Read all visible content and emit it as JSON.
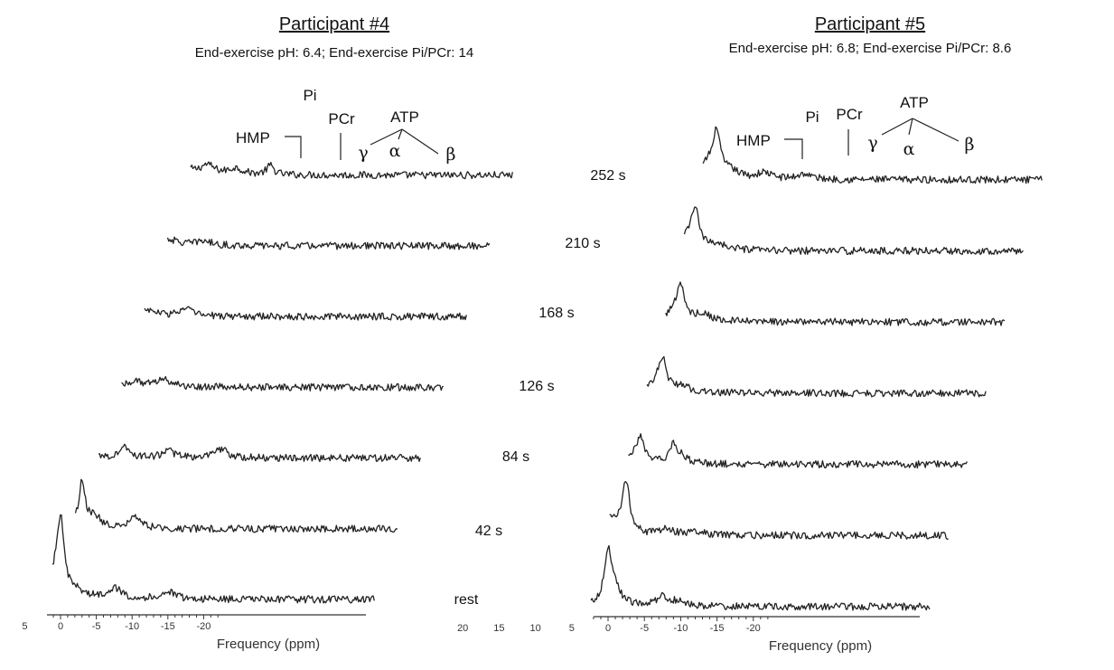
{
  "chart_data": [
    {
      "type": "line",
      "title": "Participant #4",
      "subtitle": "End-exercise pH: 6.4; End-exercise Pi/PCr: 14",
      "xlabel": "Frequency (ppm)",
      "x_ticks": [
        "20",
        "15",
        "10",
        "5",
        "0",
        "-5",
        "-10",
        "-15",
        "-20"
      ],
      "xlim": [
        21,
        -22
      ],
      "x_reversed": true,
      "peak_labels": {
        "hmp": "HMP",
        "pi": "Pi",
        "pcr": "PCr",
        "atp": "ATP",
        "gamma": "γ",
        "alpha": "α",
        "beta": "β"
      },
      "series": [
        {
          "name": "252 s",
          "peaks": [
            {
              "ppm": -14.5,
              "height": 70,
              "width": 0.5
            },
            {
              "ppm": -13.5,
              "height": 26,
              "width": 1.2
            },
            {
              "ppm": -11.5,
              "height": 7,
              "width": 1.5
            },
            {
              "ppm": -24.5,
              "height": 7,
              "width": 1.2
            },
            {
              "ppm": -17.3,
              "height": 7,
              "width": 0.6
            },
            {
              "ppm": -20.5,
              "height": 10,
              "width": 1.2
            },
            {
              "ppm": -29.3,
              "height": 10,
              "width": 0.6
            }
          ]
        },
        {
          "name": "210 s",
          "peaks": [
            {
              "ppm": -11.5,
              "height": 62,
              "width": 0.5
            },
            {
              "ppm": -10.5,
              "height": 24,
              "width": 1.2
            },
            {
              "ppm": -15.0,
              "height": 5,
              "width": 1.5
            },
            {
              "ppm": -20.0,
              "height": 5,
              "width": 1.2
            }
          ]
        },
        {
          "name": "168 s",
          "peaks": [
            {
              "ppm": -8.5,
              "height": 57,
              "width": 0.55
            },
            {
              "ppm": -7.5,
              "height": 20,
              "width": 1.2
            },
            {
              "ppm": -12.0,
              "height": 5,
              "width": 1.5
            },
            {
              "ppm": -17.5,
              "height": 8,
              "width": 1.2
            }
          ]
        },
        {
          "name": "126 s",
          "peaks": [
            {
              "ppm": -5.5,
              "height": 35,
              "width": 0.55
            },
            {
              "ppm": -4.5,
              "height": 13,
              "width": 1.2
            },
            {
              "ppm": -14.5,
              "height": 9,
              "width": 1.2
            },
            {
              "ppm": -10.5,
              "height": 6,
              "width": 1.2
            }
          ]
        },
        {
          "name": "84 s",
          "peaks": [
            {
              "ppm": -2.5,
              "height": 42,
              "width": 0.55
            },
            {
              "ppm": -1.5,
              "height": 14,
              "width": 1.2
            },
            {
              "ppm": -9.0,
              "height": 13,
              "width": 0.7
            },
            {
              "ppm": -15.0,
              "height": 8,
              "width": 1.0
            },
            {
              "ppm": -22.5,
              "height": 10,
              "width": 1.0
            }
          ]
        },
        {
          "name": "42 s",
          "peaks": [
            {
              "ppm": 2.5,
              "height": 38,
              "width": 0.55
            },
            {
              "ppm": 0.0,
              "height": 28,
              "width": 0.35
            },
            {
              "ppm": -3.0,
              "height": 50,
              "width": 0.55
            },
            {
              "ppm": -4.8,
              "height": 12,
              "width": 1.0
            },
            {
              "ppm": -10.5,
              "height": 12,
              "width": 1.0
            }
          ]
        },
        {
          "name": "rest",
          "peaks": [
            {
              "ppm": 0.0,
              "height": 80,
              "width": 0.55
            },
            {
              "ppm": 0.9,
              "height": 22,
              "width": 1.0
            },
            {
              "ppm": -2.0,
              "height": 8,
              "width": 1.5
            },
            {
              "ppm": -7.5,
              "height": 12,
              "width": 1.2
            },
            {
              "ppm": -15.0,
              "height": 8,
              "width": 1.2
            }
          ]
        }
      ]
    },
    {
      "type": "line",
      "title": "Participant #5",
      "subtitle": "End-exercise pH: 6.8; End-exercise Pi/PCr: 8.6",
      "xlabel": "Frequency (ppm)",
      "x_ticks": [
        "20",
        "15",
        "10",
        "5",
        "0",
        "-5",
        "-10",
        "-15",
        "-20"
      ],
      "xlim": [
        21,
        -22
      ],
      "x_reversed": true,
      "peak_labels": {
        "hmp": "HMP",
        "pi": "Pi",
        "pcr": "PCr",
        "atp": "ATP",
        "gamma": "γ",
        "alpha": "α",
        "beta": "β"
      },
      "series": [
        {
          "name": "252 s",
          "peaks": [
            {
              "ppm": -15.0,
              "height": 44,
              "width": 0.5
            },
            {
              "ppm": -14.0,
              "height": 20,
              "width": 1.2
            },
            {
              "ppm": -16.8,
              "height": 8,
              "width": 1.5
            },
            {
              "ppm": -21.5,
              "height": 7,
              "width": 1.2
            },
            {
              "ppm": -27.0,
              "height": 6,
              "width": 1.2
            }
          ]
        },
        {
          "name": "210 s",
          "peaks": [
            {
              "ppm": -12.0,
              "height": 38,
              "width": 0.6
            },
            {
              "ppm": -11.2,
              "height": 15,
              "width": 1.2
            },
            {
              "ppm": -15.0,
              "height": 7,
              "width": 1.5
            }
          ]
        },
        {
          "name": "168 s",
          "peaks": [
            {
              "ppm": -10.0,
              "height": 32,
              "width": 0.6
            },
            {
              "ppm": -9.2,
              "height": 12,
              "width": 1.2
            },
            {
              "ppm": -13.0,
              "height": 8,
              "width": 1.5
            }
          ]
        },
        {
          "name": "126 s",
          "peaks": [
            {
              "ppm": -7.5,
              "height": 30,
              "width": 0.6
            },
            {
              "ppm": -6.7,
              "height": 12,
              "width": 1.2
            },
            {
              "ppm": -10.0,
              "height": 7,
              "width": 1.5
            }
          ]
        },
        {
          "name": "84 s",
          "peaks": [
            {
              "ppm": -4.5,
              "height": 25,
              "width": 0.6
            },
            {
              "ppm": -3.8,
              "height": 10,
              "width": 1.2
            },
            {
              "ppm": -9.0,
              "height": 18,
              "width": 0.6
            },
            {
              "ppm": -10.0,
              "height": 8,
              "width": 1.2
            }
          ]
        },
        {
          "name": "42 s",
          "peaks": [
            {
              "ppm": 0.0,
              "height": 15,
              "width": 0.8
            },
            {
              "ppm": -2.5,
              "height": 50,
              "width": 0.55
            },
            {
              "ppm": -1.8,
              "height": 14,
              "width": 1.2
            },
            {
              "ppm": -8.0,
              "height": 6,
              "width": 1.2
            },
            {
              "ppm": -12.0,
              "height": 5,
              "width": 1.2
            }
          ]
        },
        {
          "name": "rest",
          "peaks": [
            {
              "ppm": 0.0,
              "height": 56,
              "width": 0.6
            },
            {
              "ppm": -0.8,
              "height": 16,
              "width": 1.2
            },
            {
              "ppm": -7.5,
              "height": 10,
              "width": 1.2
            },
            {
              "ppm": -10.0,
              "height": 5,
              "width": 1.2
            }
          ]
        }
      ]
    }
  ]
}
